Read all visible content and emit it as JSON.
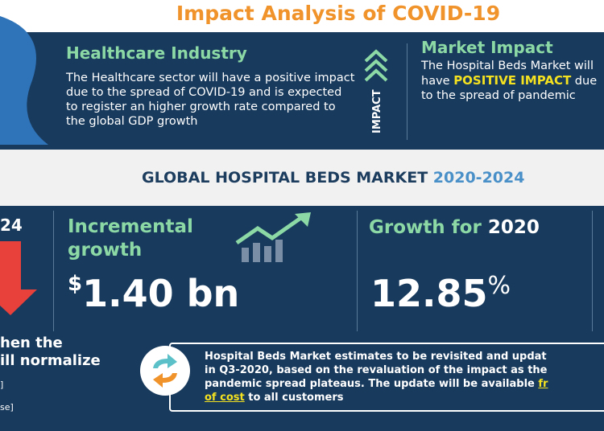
{
  "header": {
    "title": "Impact Analysis of COVID-19"
  },
  "healthcare": {
    "heading": "Healthcare Industry",
    "body": "The Healthcare sector will have a positive impact due to the spread of COVID-19 and is expected to register an higher growth rate compared to the global GDP growth"
  },
  "impact_label": "IMPACT",
  "market_impact": {
    "heading": "Market Impact",
    "body_start": "The Hospital Beds Market will have",
    "highlight": "POSITIVE IMPACT",
    "body_end": "due to the spread of pandemic"
  },
  "banner": {
    "title": "GLOBAL HOSPITAL BEDS MARKET",
    "years": "2020-2024"
  },
  "left_panel": {
    "year": "24",
    "line1": "hen the",
    "line2": "ill normalize",
    "note1": "]",
    "note2": "se]"
  },
  "incremental": {
    "heading": "Incremental growth",
    "currency": "$",
    "value": "1.40 bn"
  },
  "growth": {
    "heading": "Growth for",
    "year": "2020",
    "value": "12.85",
    "unit": "%"
  },
  "note": {
    "lines": [
      "Hospital Beds Market estimates to be revisited and updat",
      "in Q3-2020, based on the revaluation of the impact as the",
      "pandemic spread plateaus. The update will be available"
    ],
    "link1": "fr",
    "link2": "of cost",
    "line4_end": "to all customers"
  }
}
